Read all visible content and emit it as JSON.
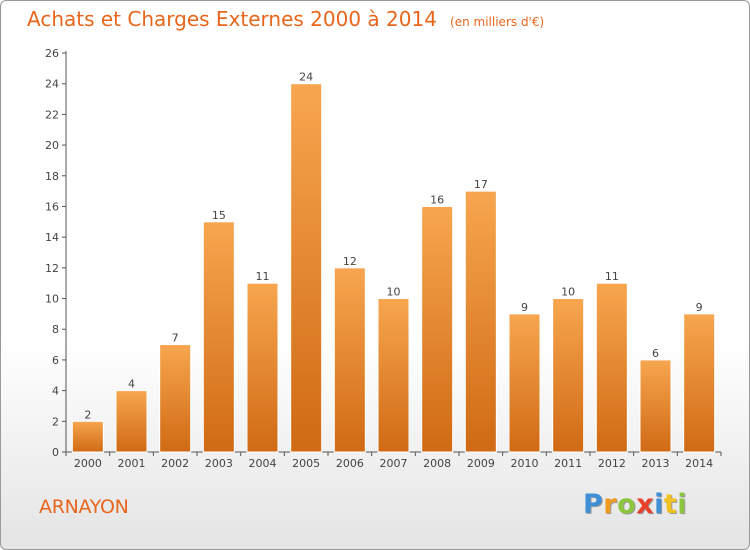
{
  "chart_data": {
    "type": "bar",
    "title": "Achats et Charges Externes 2000 à 2014",
    "subtitle": "(en milliers d'€)",
    "categories": [
      "2000",
      "2001",
      "2002",
      "2003",
      "2004",
      "2005",
      "2006",
      "2007",
      "2008",
      "2009",
      "2010",
      "2011",
      "2012",
      "2013",
      "2014"
    ],
    "values": [
      2,
      4,
      7,
      15,
      11,
      24,
      12,
      10,
      16,
      17,
      9,
      10,
      11,
      6,
      9
    ],
    "ylim": [
      0,
      26
    ],
    "yticks": [
      0,
      2,
      4,
      6,
      8,
      10,
      12,
      14,
      16,
      18,
      20,
      22,
      24,
      26
    ],
    "grid": false,
    "bar_color_top": "#f7a64f",
    "bar_color_bottom": "#d06a14"
  },
  "footer": {
    "town": "ARNAYON",
    "brand_letters": [
      {
        "char": "P",
        "color": "#3e8fd6"
      },
      {
        "char": "r",
        "color": "#f29a1f"
      },
      {
        "char": "o",
        "color": "#8cc63f"
      },
      {
        "char": "x",
        "color": "#e8402a"
      },
      {
        "char": "i",
        "color": "#3e8fd6"
      },
      {
        "char": "t",
        "color": "#f2c21f"
      },
      {
        "char": "i",
        "color": "#8cc63f"
      }
    ]
  },
  "colors": {
    "accent": "#e8661c",
    "axis": "#555555"
  }
}
